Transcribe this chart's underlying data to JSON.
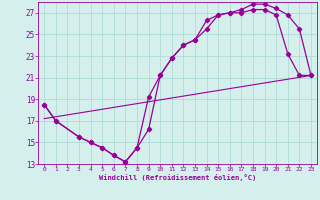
{
  "xlabel": "Windchill (Refroidissement éolien,°C)",
  "background_color": "#d4efec",
  "line_color": "#990099",
  "grid_color": "#a8d8d4",
  "xlim": [
    -0.5,
    23.5
  ],
  "ylim": [
    13,
    28
  ],
  "xticks": [
    0,
    1,
    2,
    3,
    4,
    5,
    6,
    7,
    8,
    9,
    10,
    11,
    12,
    13,
    14,
    15,
    16,
    17,
    18,
    19,
    20,
    21,
    22,
    23
  ],
  "yticks": [
    13,
    15,
    17,
    19,
    21,
    23,
    25,
    27
  ],
  "line1_x": [
    0,
    1,
    3,
    4,
    5,
    6,
    7,
    8,
    9,
    10,
    11,
    12,
    13,
    14,
    15,
    16,
    17,
    18,
    19,
    20,
    21,
    22,
    23
  ],
  "line1_y": [
    18.5,
    17.0,
    15.5,
    15.0,
    14.5,
    13.8,
    13.2,
    14.5,
    16.2,
    21.2,
    22.8,
    24.0,
    24.5,
    26.3,
    26.8,
    27.0,
    27.0,
    27.3,
    27.3,
    26.8,
    23.2,
    21.2,
    21.2
  ],
  "line2_x": [
    0,
    1,
    3,
    4,
    5,
    6,
    7,
    8,
    9,
    10,
    11,
    12,
    13,
    14,
    15,
    16,
    17,
    18,
    19,
    20,
    21,
    22,
    23
  ],
  "line2_y": [
    18.5,
    17.0,
    15.5,
    15.0,
    14.5,
    13.8,
    13.2,
    14.5,
    19.2,
    21.2,
    22.8,
    24.0,
    24.5,
    25.5,
    26.8,
    27.0,
    27.3,
    27.8,
    27.8,
    27.4,
    26.8,
    25.5,
    21.2
  ],
  "line3_x": [
    0,
    23
  ],
  "line3_y": [
    17.2,
    21.2
  ]
}
